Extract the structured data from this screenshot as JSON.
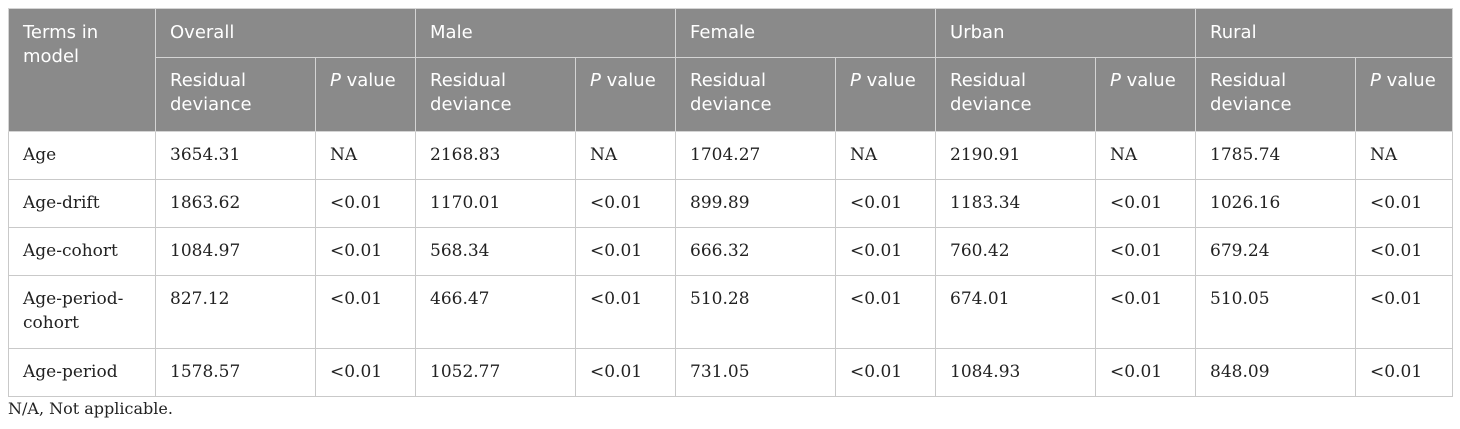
{
  "table": {
    "header": {
      "terms_label": "Terms in model",
      "groups": [
        "Overall",
        "Male",
        "Female",
        "Urban",
        "Rural"
      ],
      "residual_label": "Residual deviance",
      "p_italic": "P",
      "p_rest": " value"
    },
    "rows": [
      {
        "term": "Age",
        "values": [
          "3654.31",
          "NA",
          "2168.83",
          "NA",
          "1704.27",
          "NA",
          "2190.91",
          "NA",
          "1785.74",
          "NA"
        ]
      },
      {
        "term": "Age-drift",
        "values": [
          "1863.62",
          "<0.01",
          "1170.01",
          "<0.01",
          "899.89",
          "<0.01",
          "1183.34",
          "<0.01",
          "1026.16",
          "<0.01"
        ]
      },
      {
        "term": "Age-cohort",
        "values": [
          "1084.97",
          "<0.01",
          "568.34",
          "<0.01",
          "666.32",
          "<0.01",
          "760.42",
          "<0.01",
          "679.24",
          "<0.01"
        ]
      },
      {
        "term": "Age-period-cohort",
        "values": [
          "827.12",
          "<0.01",
          "466.47",
          "<0.01",
          "510.28",
          "<0.01",
          "674.01",
          "<0.01",
          "510.05",
          "<0.01"
        ]
      },
      {
        "term": "Age-period",
        "values": [
          "1578.57",
          "<0.01",
          "1052.77",
          "<0.01",
          "731.05",
          "<0.01",
          "1084.93",
          "<0.01",
          "848.09",
          "<0.01"
        ]
      }
    ]
  },
  "footnote": "N/A, Not applicable."
}
